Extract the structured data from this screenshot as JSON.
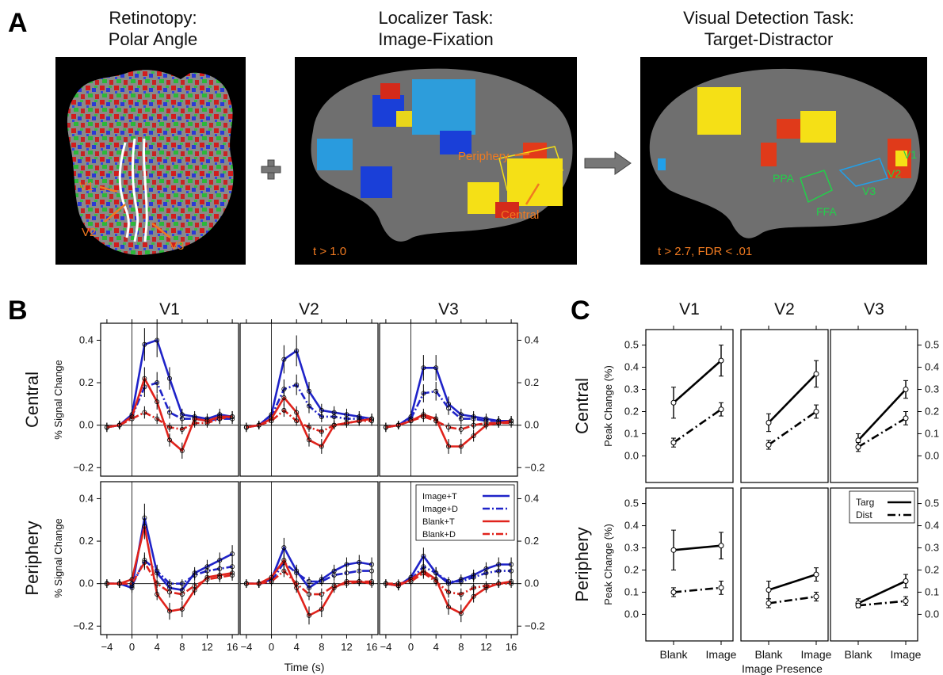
{
  "panel_a": {
    "letter": "A",
    "titles": [
      [
        "Retinotopy:",
        "Polar Angle"
      ],
      [
        "Localizer Task:",
        "Image-Fixation"
      ],
      [
        "Visual Detection Task:",
        "Target-Distractor"
      ]
    ],
    "retinotopy_labels": [
      "V1",
      "V2",
      "V3"
    ],
    "localizer_labels": {
      "periphery": "Periphery",
      "central": "Central",
      "threshold": "t > 1.0"
    },
    "detection_labels": {
      "ppa": "PPA",
      "ffa": "FFA",
      "v1": "V1",
      "v2": "V2",
      "v3": "V3",
      "threshold": "t > 2.7, FDR < .01"
    },
    "operators": [
      "plus-symbol",
      "right-arrow"
    ]
  },
  "panel_b": {
    "letter": "B",
    "xlabel": "Time (s)",
    "ylabel": "% Signal Change"
  },
  "panel_c": {
    "letter": "C",
    "xlabel": "Image Presence",
    "ylabel": "Peak Change (%)"
  },
  "colors": {
    "image": "#1f23c8",
    "blank": "#e0231c",
    "overlay_text": "#f07a20",
    "roi_text": "#22d04a"
  },
  "chart_data": [
    {
      "type": "line",
      "panel": "B",
      "columns": [
        "V1",
        "V2",
        "V3"
      ],
      "rows": [
        "Central",
        "Periphery"
      ],
      "x": [
        -4,
        -2,
        0,
        2,
        4,
        6,
        8,
        10,
        12,
        14,
        16
      ],
      "xticks": [
        -4,
        0,
        4,
        8,
        12,
        16
      ],
      "yticks": [
        -0.2,
        0.0,
        0.2,
        0.4
      ],
      "ylim": [
        -0.24,
        0.48
      ],
      "xlim": [
        -5,
        17
      ],
      "xlabel": "Time (s)",
      "ylabel": "% Signal Change",
      "legend": [
        "Image+T",
        "Image+D",
        "Blank+T",
        "Blank+D"
      ],
      "legend_position": "top-right of Periphery V3",
      "panels": [
        {
          "row": "Central",
          "col": "V1",
          "series": [
            {
              "name": "Image+T",
              "values": [
                -0.01,
                0.0,
                0.05,
                0.38,
                0.4,
                0.22,
                0.05,
                0.04,
                0.03,
                0.05,
                0.04
              ]
            },
            {
              "name": "Image+D",
              "values": [
                -0.01,
                0.0,
                0.04,
                0.18,
                0.2,
                0.06,
                0.03,
                0.03,
                0.02,
                0.03,
                0.03
              ]
            },
            {
              "name": "Blank+T",
              "values": [
                -0.01,
                0.0,
                0.04,
                0.22,
                0.11,
                -0.07,
                -0.12,
                0.03,
                0.02,
                0.04,
                0.04
              ]
            },
            {
              "name": "Blank+D",
              "values": [
                -0.01,
                0.0,
                0.03,
                0.06,
                0.03,
                -0.01,
                -0.02,
                0.01,
                0.01,
                0.03,
                0.04
              ]
            }
          ]
        },
        {
          "row": "Central",
          "col": "V2",
          "series": [
            {
              "name": "Image+T",
              "values": [
                -0.01,
                0.0,
                0.05,
                0.31,
                0.35,
                0.16,
                0.07,
                0.06,
                0.05,
                0.04,
                0.03
              ]
            },
            {
              "name": "Image+D",
              "values": [
                -0.01,
                0.0,
                0.04,
                0.17,
                0.19,
                0.09,
                0.04,
                0.04,
                0.03,
                0.03,
                0.03
              ]
            },
            {
              "name": "Blank+T",
              "values": [
                -0.01,
                0.0,
                0.03,
                0.13,
                0.06,
                -0.07,
                -0.1,
                0.0,
                0.01,
                0.02,
                0.03
              ]
            },
            {
              "name": "Blank+D",
              "values": [
                -0.01,
                0.0,
                0.02,
                0.07,
                0.02,
                -0.01,
                -0.03,
                0.0,
                0.01,
                0.02,
                0.02
              ]
            }
          ]
        },
        {
          "row": "Central",
          "col": "V3",
          "series": [
            {
              "name": "Image+T",
              "values": [
                -0.01,
                0.0,
                0.04,
                0.27,
                0.27,
                0.1,
                0.05,
                0.04,
                0.03,
                0.02,
                0.02
              ]
            },
            {
              "name": "Image+D",
              "values": [
                -0.01,
                0.0,
                0.03,
                0.15,
                0.16,
                0.08,
                0.03,
                0.03,
                0.02,
                0.02,
                0.02
              ]
            },
            {
              "name": "Blank+T",
              "values": [
                -0.01,
                0.0,
                0.02,
                0.05,
                0.03,
                -0.1,
                -0.1,
                -0.05,
                0.0,
                0.01,
                0.02
              ]
            },
            {
              "name": "Blank+D",
              "values": [
                -0.01,
                0.0,
                0.02,
                0.04,
                0.02,
                -0.01,
                -0.02,
                0.0,
                0.01,
                0.01,
                0.01
              ]
            }
          ]
        },
        {
          "row": "Periphery",
          "col": "V1",
          "series": [
            {
              "name": "Image+T",
              "values": [
                0.0,
                0.0,
                -0.02,
                0.31,
                0.05,
                -0.02,
                -0.03,
                0.05,
                0.08,
                0.11,
                0.14
              ]
            },
            {
              "name": "Image+D",
              "values": [
                0.0,
                0.0,
                -0.01,
                0.11,
                0.06,
                0.0,
                0.0,
                0.04,
                0.06,
                0.07,
                0.08
              ]
            },
            {
              "name": "Blank+T",
              "values": [
                0.0,
                0.0,
                0.02,
                0.27,
                -0.05,
                -0.13,
                -0.12,
                -0.03,
                0.03,
                0.04,
                0.05
              ]
            },
            {
              "name": "Blank+D",
              "values": [
                0.0,
                0.0,
                0.0,
                0.1,
                0.0,
                -0.04,
                -0.05,
                -0.01,
                0.02,
                0.03,
                0.04
              ]
            }
          ]
        },
        {
          "row": "Periphery",
          "col": "V2",
          "series": [
            {
              "name": "Image+T",
              "values": [
                0.0,
                0.0,
                0.02,
                0.17,
                0.06,
                -0.02,
                0.02,
                0.06,
                0.09,
                0.1,
                0.09
              ]
            },
            {
              "name": "Image+D",
              "values": [
                0.0,
                0.0,
                0.01,
                0.1,
                0.05,
                0.01,
                0.01,
                0.04,
                0.05,
                0.06,
                0.06
              ]
            },
            {
              "name": "Blank+T",
              "values": [
                0.0,
                0.0,
                0.03,
                0.11,
                -0.02,
                -0.15,
                -0.12,
                -0.02,
                0.01,
                0.01,
                0.0
              ]
            },
            {
              "name": "Blank+D",
              "values": [
                0.0,
                0.0,
                0.01,
                0.06,
                0.0,
                -0.05,
                -0.05,
                -0.01,
                0.0,
                0.01,
                0.01
              ]
            }
          ]
        },
        {
          "row": "Periphery",
          "col": "V3",
          "series": [
            {
              "name": "Image+T",
              "values": [
                0.0,
                -0.01,
                0.03,
                0.13,
                0.05,
                0.0,
                0.02,
                0.04,
                0.07,
                0.09,
                0.09
              ]
            },
            {
              "name": "Image+D",
              "values": [
                0.0,
                -0.01,
                0.02,
                0.08,
                0.05,
                0.01,
                0.01,
                0.03,
                0.05,
                0.06,
                0.06
              ]
            },
            {
              "name": "Blank+T",
              "values": [
                0.0,
                -0.01,
                0.02,
                0.06,
                0.02,
                -0.11,
                -0.14,
                -0.06,
                -0.02,
                0.0,
                0.01
              ]
            },
            {
              "name": "Blank+D",
              "values": [
                0.0,
                0.0,
                0.01,
                0.05,
                0.01,
                -0.04,
                -0.05,
                -0.02,
                -0.01,
                0.0,
                0.0
              ]
            }
          ]
        }
      ]
    },
    {
      "type": "line",
      "panel": "C",
      "columns": [
        "V1",
        "V2",
        "V3"
      ],
      "rows": [
        "Central",
        "Periphery"
      ],
      "categories": [
        "Blank",
        "Image"
      ],
      "yticks": [
        0.0,
        0.1,
        0.2,
        0.3,
        0.4,
        0.5
      ],
      "ylim": [
        -0.12,
        0.57
      ],
      "xlabel": "Image Presence",
      "ylabel": "Peak Change (%)",
      "legend": [
        "Targ",
        "Dist"
      ],
      "legend_position": "top-right of Periphery V3",
      "panels": [
        {
          "row": "Central",
          "col": "V1",
          "series": [
            {
              "name": "Targ",
              "values": [
                0.24,
                0.43
              ],
              "err": [
                0.07,
                0.07
              ]
            },
            {
              "name": "Dist",
              "values": [
                0.06,
                0.21
              ],
              "err": [
                0.02,
                0.03
              ]
            }
          ]
        },
        {
          "row": "Central",
          "col": "V2",
          "series": [
            {
              "name": "Targ",
              "values": [
                0.15,
                0.37
              ],
              "err": [
                0.04,
                0.06
              ]
            },
            {
              "name": "Dist",
              "values": [
                0.05,
                0.2
              ],
              "err": [
                0.02,
                0.03
              ]
            }
          ]
        },
        {
          "row": "Central",
          "col": "V3",
          "series": [
            {
              "name": "Targ",
              "values": [
                0.07,
                0.3
              ],
              "err": [
                0.03,
                0.04
              ]
            },
            {
              "name": "Dist",
              "values": [
                0.04,
                0.17
              ],
              "err": [
                0.02,
                0.03
              ]
            }
          ]
        },
        {
          "row": "Periphery",
          "col": "V1",
          "series": [
            {
              "name": "Targ",
              "values": [
                0.29,
                0.31
              ],
              "err": [
                0.09,
                0.06
              ]
            },
            {
              "name": "Dist",
              "values": [
                0.1,
                0.12
              ],
              "err": [
                0.02,
                0.03
              ]
            }
          ]
        },
        {
          "row": "Periphery",
          "col": "V2",
          "series": [
            {
              "name": "Targ",
              "values": [
                0.11,
                0.18
              ],
              "err": [
                0.04,
                0.03
              ]
            },
            {
              "name": "Dist",
              "values": [
                0.05,
                0.08
              ],
              "err": [
                0.02,
                0.02
              ]
            }
          ]
        },
        {
          "row": "Periphery",
          "col": "V3",
          "series": [
            {
              "name": "Targ",
              "values": [
                0.05,
                0.15
              ],
              "err": [
                0.02,
                0.03
              ]
            },
            {
              "name": "Dist",
              "values": [
                0.04,
                0.06
              ],
              "err": [
                0.01,
                0.02
              ]
            }
          ]
        }
      ]
    }
  ]
}
